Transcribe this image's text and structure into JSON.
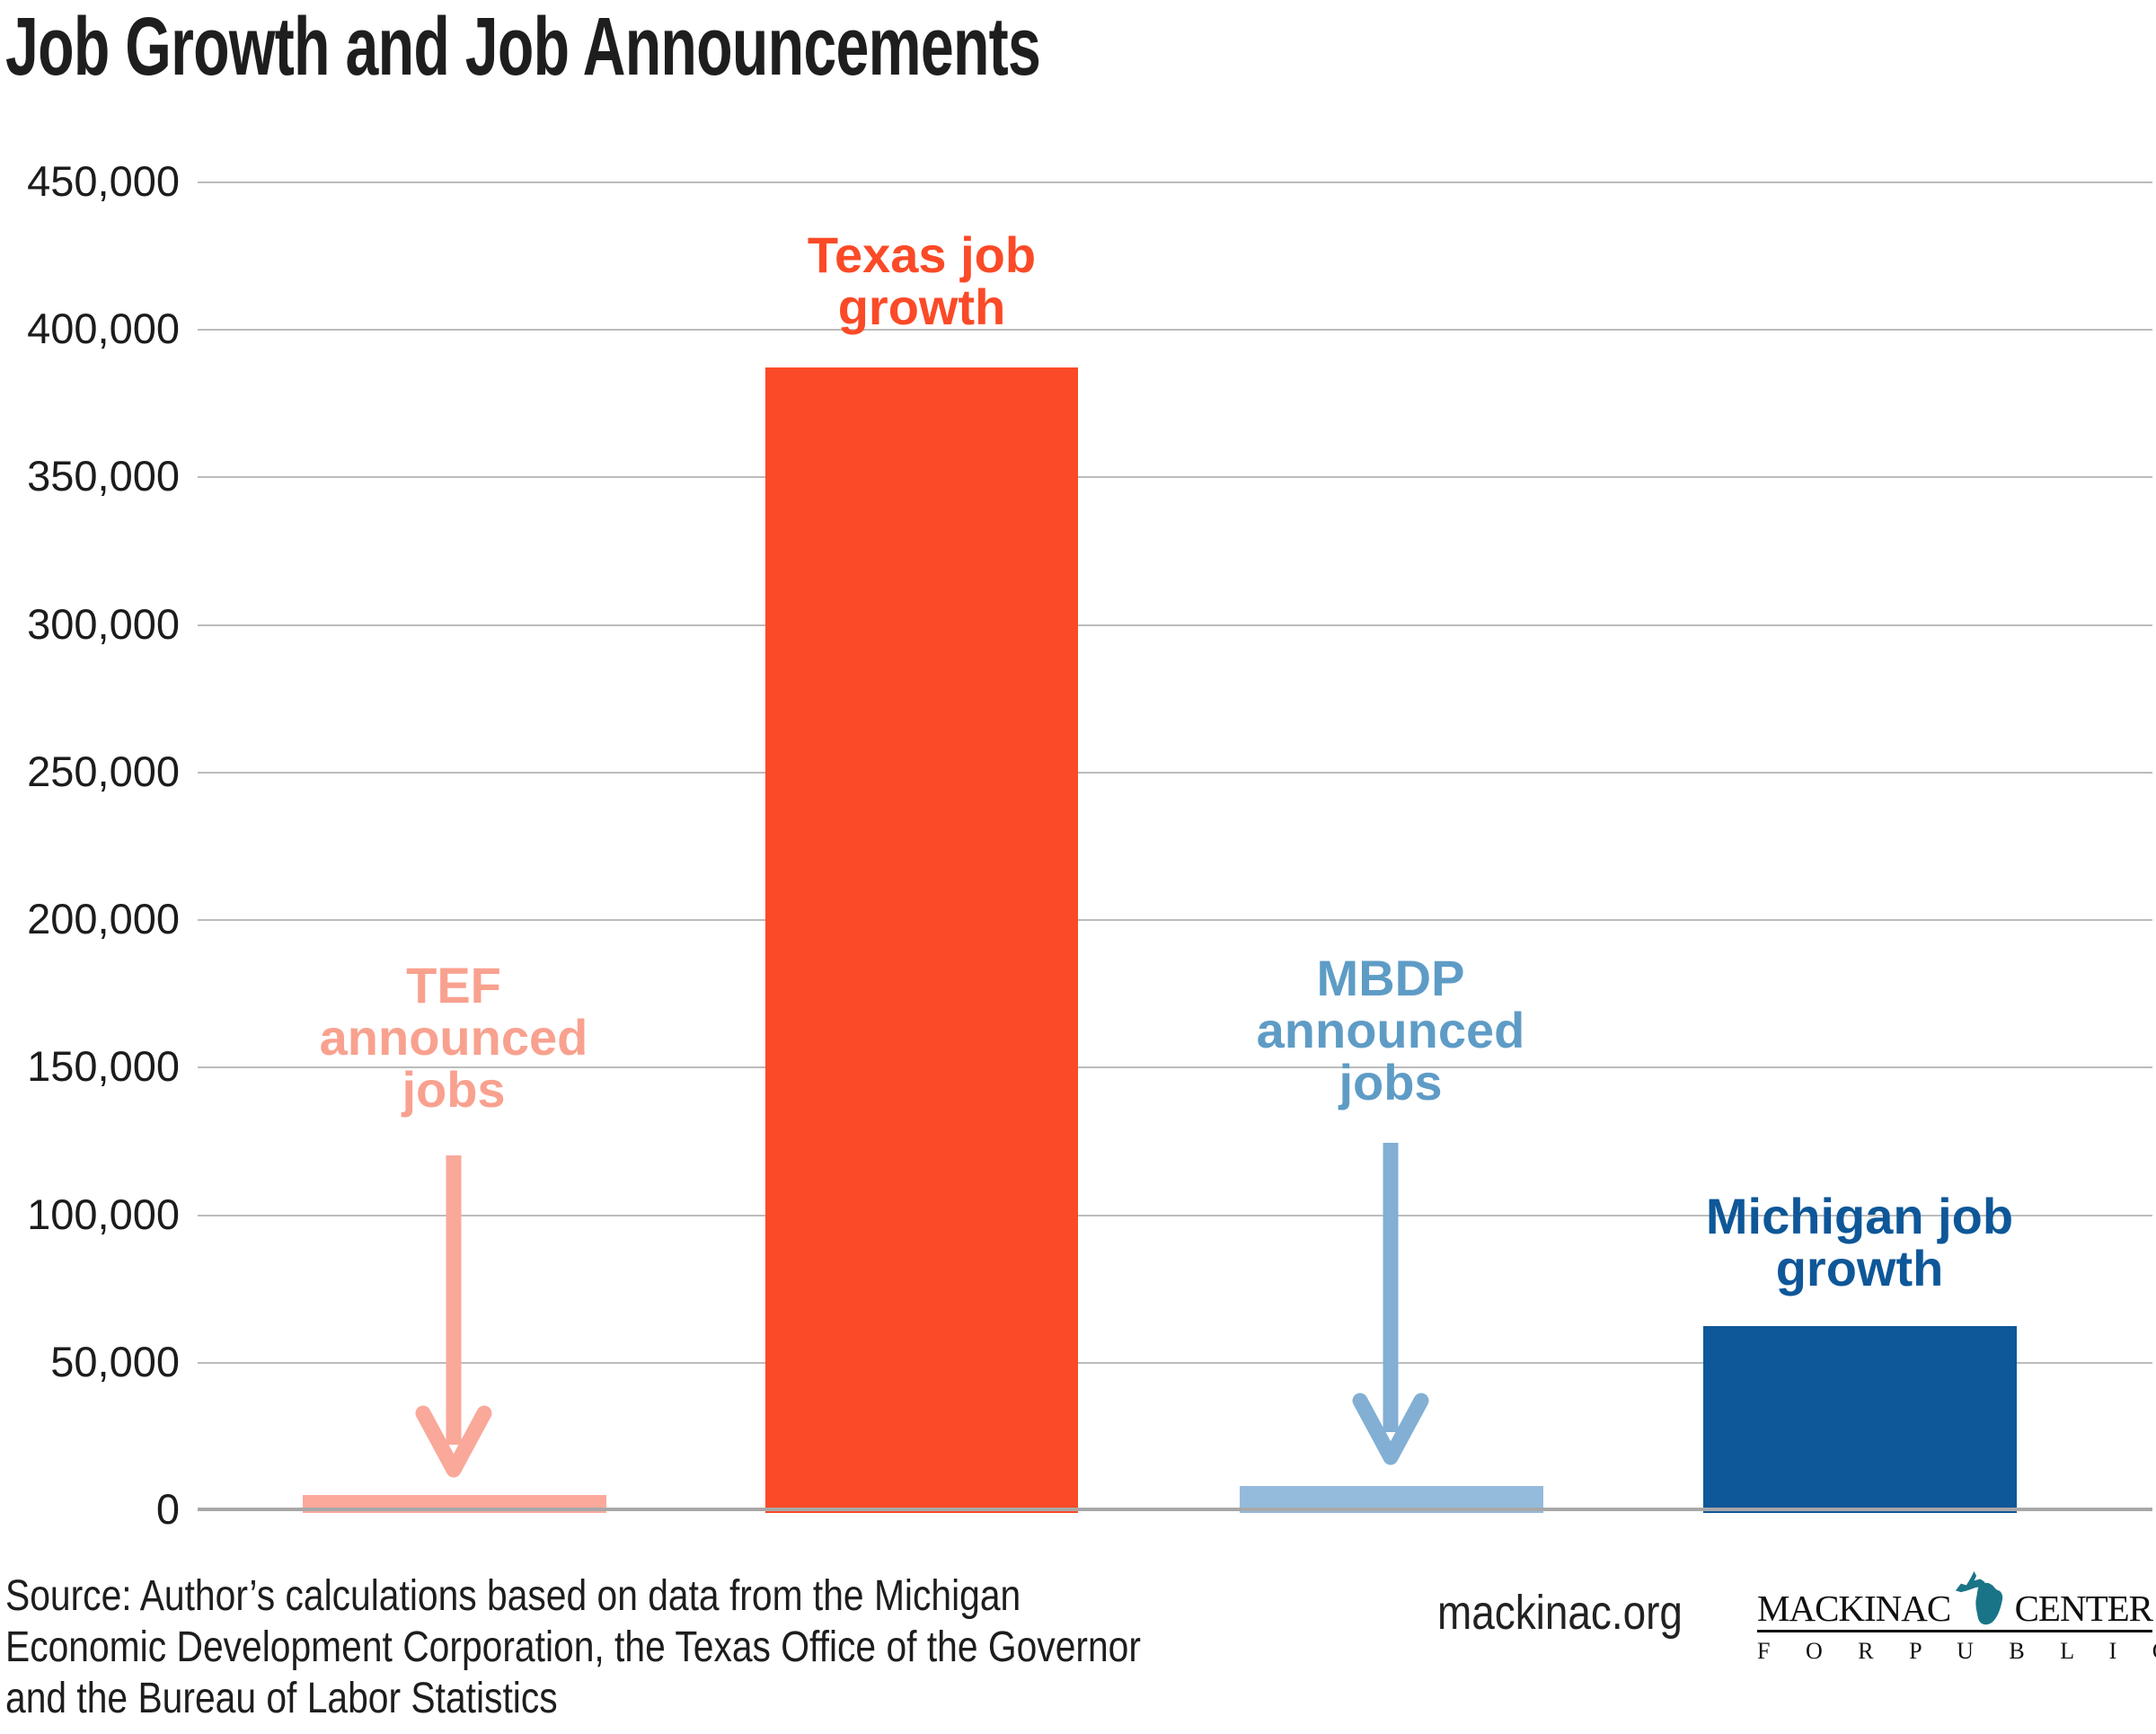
{
  "title": "Job Growth and Job Announcements",
  "chart_data": {
    "type": "bar",
    "title": "Job Growth and Job Announcements",
    "categories": [
      "TEF announced jobs",
      "Texas job growth",
      "MBDP announced jobs",
      "Michigan job growth"
    ],
    "values": [
      5000,
      387000,
      8000,
      62000
    ],
    "bar_colors": [
      "#FCA99C",
      "#FB4A27",
      "#94BADC",
      "#0E5798"
    ],
    "label_texts": [
      "TEF\nannounced\njobs",
      "Texas job\ngrowth",
      "MBDP\nannounced\njobs",
      "Michigan job\ngrowth"
    ],
    "label_colors": [
      "#F9A18F",
      "#FB4A27",
      "#5E9CC6",
      "#0E5798"
    ],
    "arrow_colors": [
      "#F9A899",
      "#82AFD3"
    ],
    "xlabel": "",
    "ylabel": "",
    "ylim": [
      0,
      450000
    ],
    "ytick_interval": 50000,
    "ytick_labels": [
      "450,000",
      "400,000",
      "350,000",
      "300,000",
      "250,000",
      "200,000",
      "150,000",
      "100,000",
      "50,000",
      "0"
    ],
    "grid": "horizontal",
    "legend_position": "none"
  },
  "footer": {
    "source": "Source: Author’s calculations based on data from the Michigan\nEconomic Development Corporation, the Texas Office of the Governor\nand the Bureau of Labor Statistics",
    "website": "mackinac.org",
    "logo": {
      "name_left": "MACKINAC",
      "name_right": "CENTER",
      "tagline": "F O R   P U B L I C   P O L I C Y",
      "icon": "michigan-state-silhouette",
      "icon_color": "#1A7487"
    }
  },
  "colors": {
    "background": "#FFFFFF",
    "gridline": "#BCBCBC",
    "baseline": "#A8A8A8",
    "title_text": "#1E1E1E",
    "axis_text": "#1C1C1C"
  }
}
